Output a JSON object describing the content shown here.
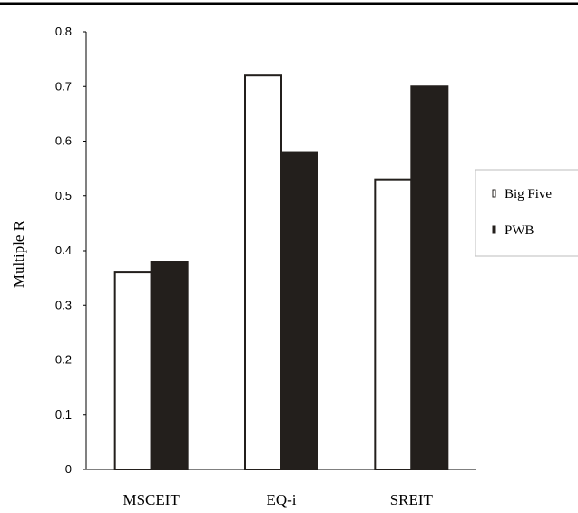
{
  "chart_data": {
    "type": "bar",
    "title": "",
    "xlabel": "",
    "ylabel": "Multiple R",
    "ylim": [
      0,
      0.8
    ],
    "yticks": [
      "0",
      "0.1",
      "0.2",
      "0.3",
      "0.4",
      "0.5",
      "0.6",
      "0.7",
      "0.8"
    ],
    "categories": [
      "MSCEIT",
      "EQ-i",
      "SREIT"
    ],
    "series": [
      {
        "name": "Big Five",
        "values": [
          0.36,
          0.72,
          0.53
        ],
        "color": "#ffffff"
      },
      {
        "name": "PWB",
        "values": [
          0.38,
          0.58,
          0.7
        ],
        "color": "#231f1c"
      }
    ],
    "grid": false,
    "legend": "right"
  }
}
